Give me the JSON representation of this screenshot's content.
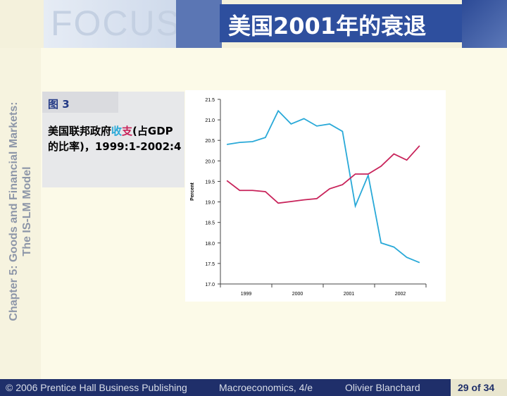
{
  "header": {
    "logo": "FOCUS",
    "title": "美国2001年的衰退"
  },
  "sidebar": {
    "line1": "Chapter 5: Goods and Financial Markets:",
    "line2": "The IS-LM Model"
  },
  "figure": {
    "label": "图 3",
    "caption_prefix": "美国联邦政府",
    "caption_revenue": "收",
    "caption_spending": "支",
    "caption_suffix": "(占GDP的比率)，1999:1-2002:4"
  },
  "footer": {
    "copyright": "© 2006 Prentice Hall Business Publishing",
    "book": "Macroeconomics, 4/e",
    "author": "Olivier Blanchard",
    "page": "29 of 34"
  },
  "chart_data": {
    "type": "line",
    "y_label": "Percent",
    "categories": [
      "1999",
      null,
      null,
      null,
      "2000",
      null,
      null,
      null,
      "2001",
      null,
      null,
      null,
      "2002",
      null,
      null,
      null
    ],
    "series": [
      {
        "color": "#29a9d8",
        "values": [
          20.4,
          20.45,
          20.47,
          20.57,
          21.22,
          20.9,
          21.03,
          20.85,
          20.9,
          20.72,
          18.9,
          19.65,
          18.0,
          17.9,
          17.65,
          17.52
        ]
      },
      {
        "color": "#c8235a",
        "values": [
          19.52,
          19.28,
          19.28,
          19.25,
          18.97,
          19.01,
          19.05,
          19.08,
          19.32,
          19.42,
          19.68,
          19.68,
          19.87,
          20.17,
          20.02,
          20.37
        ]
      }
    ],
    "ylim": [
      17.0,
      21.5
    ],
    "yticks": [
      {
        "value": 17,
        "label": "17.0"
      },
      17.5,
      {
        "value": 18,
        "label": "18.0"
      },
      18.5,
      {
        "value": 19,
        "label": "19.0"
      },
      19.5,
      {
        "value": 20,
        "label": "20.0"
      },
      20.5,
      {
        "value": 21,
        "label": "21.0"
      },
      21.5
    ]
  }
}
